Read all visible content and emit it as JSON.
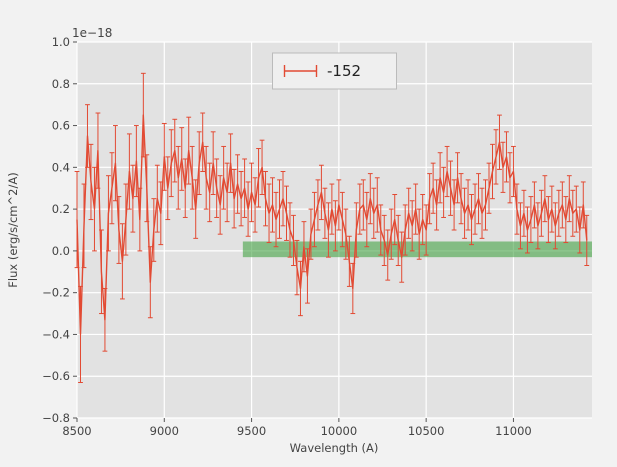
{
  "figure": {
    "background": "#f2f2f2",
    "plot_background": "#e2e2e2",
    "grid_color": "#ffffff",
    "tick_color": "#555555",
    "label_color": "#444444"
  },
  "chart_data": {
    "type": "line",
    "title": "",
    "offset_text": "1e−18",
    "xlabel": "Wavelength (A)",
    "ylabel": "Flux (erg/s/cm^2/A)",
    "xlim": [
      8500,
      11450
    ],
    "ylim": [
      -0.8,
      1.0
    ],
    "x_ticks": [
      8500,
      9000,
      9500,
      10000,
      10500,
      11000
    ],
    "y_ticks": [
      -0.8,
      -0.6,
      -0.4,
      -0.2,
      0.0,
      0.2,
      0.4,
      0.6,
      0.8,
      1.0
    ],
    "grid": true,
    "legend": {
      "label": "-152",
      "position": "upper center",
      "color": "#e24a33"
    },
    "band": {
      "x_start": 9450,
      "x_end": 11450,
      "y_low": -0.03,
      "y_high": 0.045,
      "color": "#44a344",
      "alpha": 0.6
    },
    "series": [
      {
        "name": "-152",
        "color": "#e24a33",
        "x_start": 8500,
        "x_step": 20,
        "values": [
          0.15,
          -0.4,
          0.12,
          0.55,
          0.33,
          0.2,
          0.48,
          -0.1,
          -0.33,
          0.18,
          0.3,
          0.42,
          0.1,
          -0.05,
          0.15,
          0.38,
          0.25,
          0.43,
          0.15,
          0.65,
          0.3,
          -0.15,
          0.1,
          0.25,
          0.18,
          0.45,
          0.3,
          0.42,
          0.48,
          0.35,
          0.44,
          0.3,
          0.48,
          0.35,
          0.2,
          0.42,
          0.52,
          0.35,
          0.28,
          0.42,
          0.3,
          0.22,
          0.35,
          0.28,
          0.42,
          0.25,
          0.32,
          0.25,
          0.3,
          0.2,
          0.28,
          0.22,
          0.35,
          0.4,
          0.25,
          0.18,
          0.22,
          0.15,
          0.2,
          0.25,
          0.18,
          0.1,
          0.05,
          -0.08,
          -0.18,
          0.02,
          -0.12,
          0.08,
          0.15,
          0.22,
          0.28,
          0.18,
          0.1,
          0.2,
          0.12,
          0.22,
          0.15,
          0.08,
          -0.05,
          -0.18,
          0.1,
          0.2,
          0.22,
          0.15,
          0.25,
          0.18,
          0.22,
          0.1,
          0.05,
          -0.02,
          0.08,
          0.15,
          0.05,
          -0.03,
          0.1,
          0.18,
          0.12,
          0.2,
          0.08,
          0.15,
          0.1,
          0.25,
          0.3,
          0.22,
          0.35,
          0.28,
          0.38,
          0.3,
          0.22,
          0.35,
          0.25,
          0.18,
          0.22,
          0.15,
          0.2,
          0.25,
          0.18,
          0.22,
          0.3,
          0.38,
          0.45,
          0.52,
          0.4,
          0.45,
          0.35,
          0.38,
          0.2,
          0.12,
          0.18,
          0.1,
          0.15,
          0.22,
          0.12,
          0.18,
          0.25,
          0.15,
          0.2,
          0.12,
          0.18,
          0.22,
          0.15,
          0.25,
          0.18,
          0.2,
          0.1,
          0.22,
          0.05
        ],
        "errors": [
          0.23,
          0.23,
          0.2,
          0.15,
          0.18,
          0.2,
          0.18,
          0.2,
          0.15,
          0.18,
          0.17,
          0.18,
          0.16,
          0.18,
          0.17,
          0.18,
          0.16,
          0.17,
          0.15,
          0.2,
          0.16,
          0.17,
          0.15,
          0.16,
          0.15,
          0.16,
          0.15,
          0.16,
          0.15,
          0.15,
          0.15,
          0.14,
          0.16,
          0.15,
          0.14,
          0.15,
          0.14,
          0.15,
          0.14,
          0.15,
          0.14,
          0.14,
          0.15,
          0.14,
          0.14,
          0.14,
          0.14,
          0.13,
          0.14,
          0.13,
          0.14,
          0.13,
          0.14,
          0.13,
          0.13,
          0.14,
          0.13,
          0.13,
          0.14,
          0.13,
          0.13,
          0.13,
          0.12,
          0.13,
          0.13,
          0.12,
          0.13,
          0.12,
          0.13,
          0.12,
          0.13,
          0.12,
          0.13,
          0.12,
          0.12,
          0.12,
          0.13,
          0.12,
          0.12,
          0.12,
          0.13,
          0.12,
          0.12,
          0.13,
          0.12,
          0.12,
          0.13,
          0.12,
          0.12,
          0.12,
          0.12,
          0.12,
          0.12,
          0.12,
          0.12,
          0.12,
          0.12,
          0.12,
          0.12,
          0.12,
          0.12,
          0.12,
          0.12,
          0.12,
          0.12,
          0.12,
          0.12,
          0.13,
          0.12,
          0.12,
          0.12,
          0.12,
          0.12,
          0.12,
          0.12,
          0.12,
          0.12,
          0.12,
          0.12,
          0.13,
          0.13,
          0.13,
          0.12,
          0.12,
          0.12,
          0.12,
          0.12,
          0.11,
          0.11,
          0.11,
          0.11,
          0.11,
          0.11,
          0.11,
          0.11,
          0.11,
          0.11,
          0.11,
          0.11,
          0.11,
          0.11,
          0.11,
          0.11,
          0.11,
          0.11,
          0.11,
          0.12
        ]
      }
    ]
  }
}
